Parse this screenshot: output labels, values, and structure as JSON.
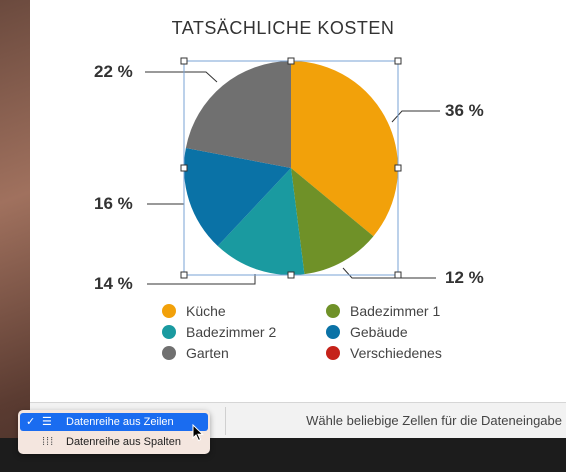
{
  "chart_data": {
    "type": "pie",
    "title": "TATSÄCHLICHE KOSTEN",
    "categories": [
      "Küche",
      "Badezimmer 1",
      "Badezimmer 2",
      "Gebäude",
      "Garten",
      "Verschiedenes"
    ],
    "values": [
      36,
      12,
      14,
      16,
      22,
      0
    ],
    "labels": [
      "36 %",
      "12 %",
      "14 %",
      "16 %",
      "22 %"
    ],
    "colors": [
      "#f2a10a",
      "#6f9128",
      "#1a9aa0",
      "#0a72a6",
      "#707070",
      "#c5221a"
    ],
    "legend_position": "bottom"
  },
  "legend": [
    {
      "label": "Küche",
      "color": "#f2a10a"
    },
    {
      "label": "Badezimmer 1",
      "color": "#6f9128"
    },
    {
      "label": "Badezimmer 2",
      "color": "#1a9aa0"
    },
    {
      "label": "Gebäude",
      "color": "#0a72a6"
    },
    {
      "label": "Garten",
      "color": "#707070"
    },
    {
      "label": "Verschiedenes",
      "color": "#c5221a"
    }
  ],
  "bottom_bar": {
    "hint": "Wähle beliebige Zellen für die Dateneingabe"
  },
  "menu": {
    "items": [
      {
        "label": "Datenreihe aus Zeilen",
        "icon": "rows-icon",
        "selected": true
      },
      {
        "label": "Datenreihe aus Spalten",
        "icon": "columns-icon",
        "selected": false
      }
    ]
  }
}
